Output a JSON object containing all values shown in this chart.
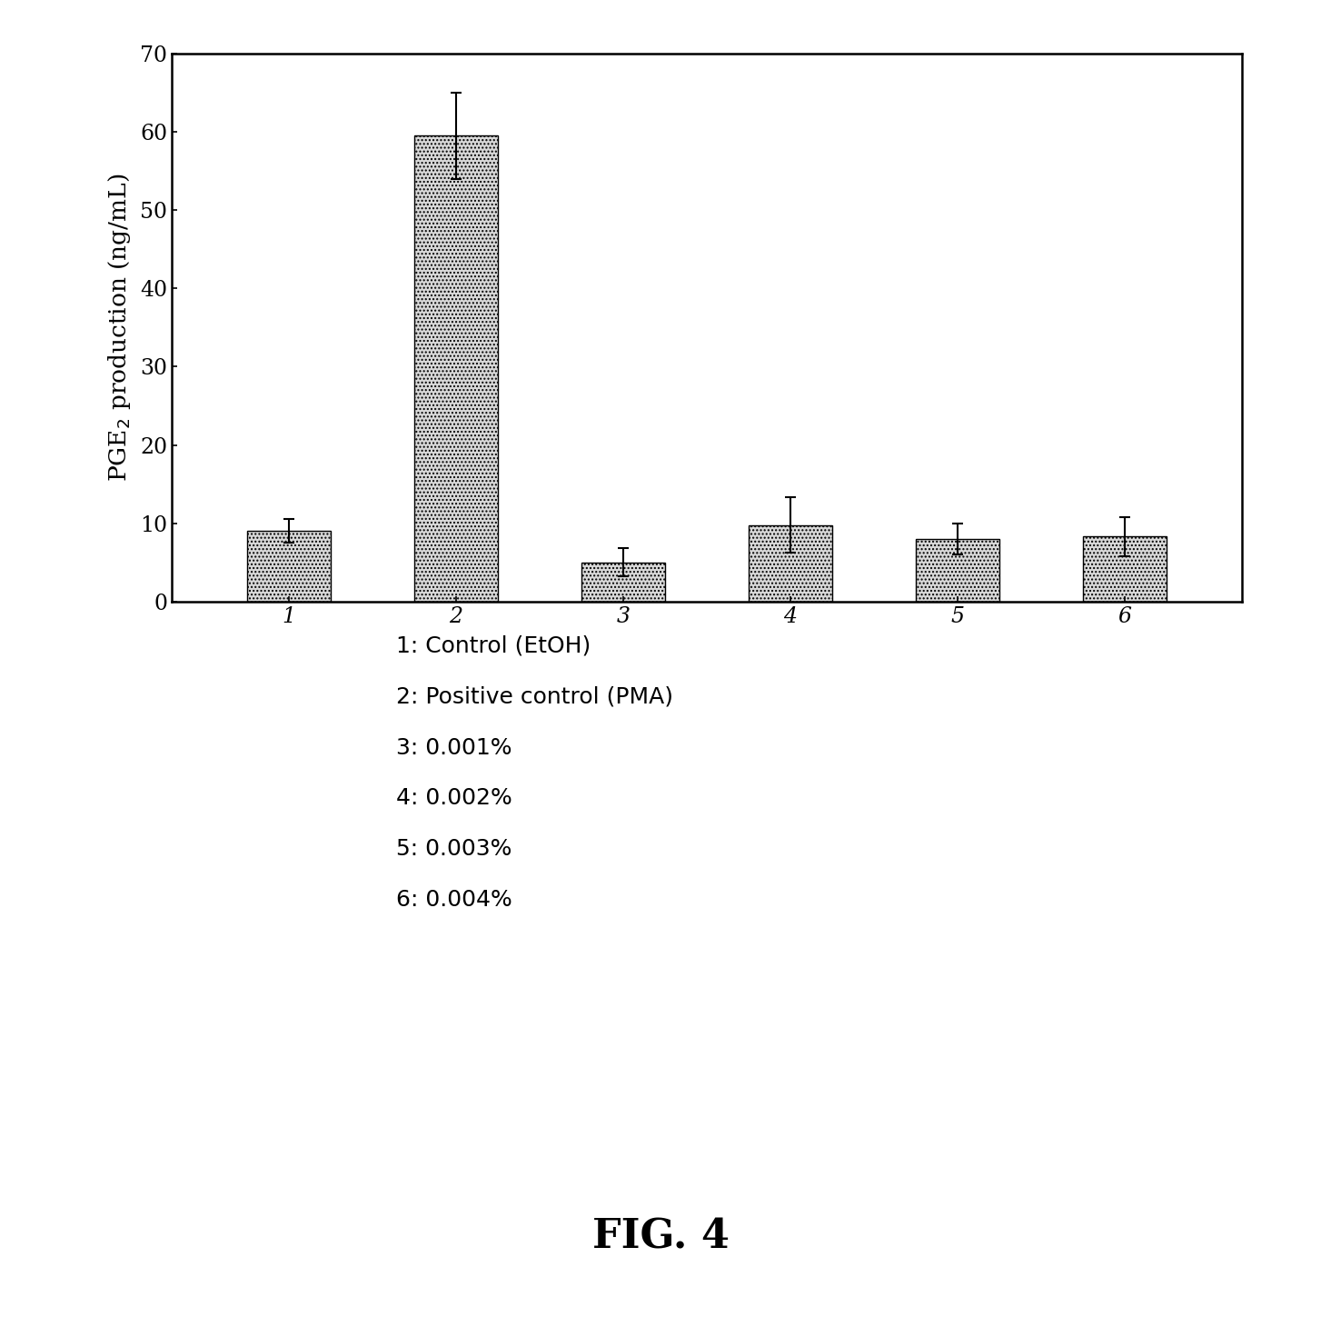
{
  "categories": [
    "1",
    "2",
    "3",
    "4",
    "5",
    "6"
  ],
  "values": [
    9.0,
    59.5,
    5.0,
    9.8,
    8.0,
    8.3
  ],
  "errors": [
    1.5,
    5.5,
    1.8,
    3.5,
    2.0,
    2.5
  ],
  "ylabel": "PGE$_2$ production (ng/mL)",
  "ylim": [
    0,
    70
  ],
  "yticks": [
    0,
    10,
    20,
    30,
    40,
    50,
    60,
    70
  ],
  "bar_color": "#d8d8d8",
  "bar_hatch": "....",
  "bar_width": 0.5,
  "legend_lines": [
    "1: Control (EtOH)",
    "2: Positive control (PMA)",
    "3: 0.001%",
    "4: 0.002%",
    "5: 0.003%",
    "6: 0.004%"
  ],
  "fig_title": "FIG. 4",
  "background_color": "#ffffff",
  "title_fontsize": 32,
  "axis_fontsize": 19,
  "tick_fontsize": 17,
  "legend_fontsize": 18
}
